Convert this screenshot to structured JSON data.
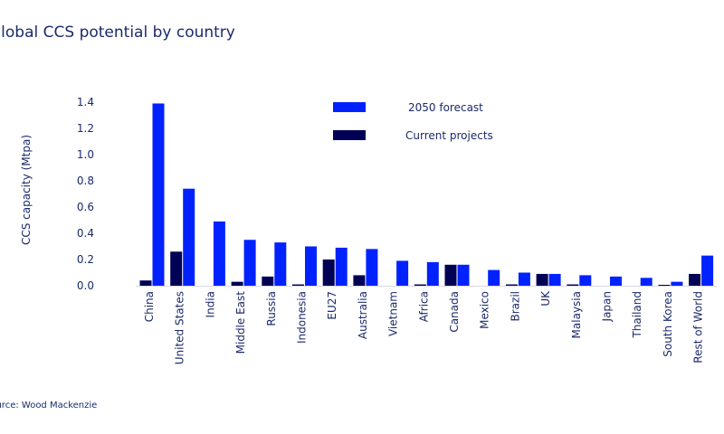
{
  "chart_data": {
    "type": "bar",
    "title": "Global CCS potential by country",
    "source": "Source: Wood Mackenzie",
    "ylabel": "CCS capacity (Mtpa)",
    "xlabel": "",
    "ylim": [
      0,
      1.4
    ],
    "yticks": [
      "0.0",
      "0.2",
      "0.4",
      "0.6",
      "0.8",
      "1.0",
      "1.2",
      "1.4"
    ],
    "grid": false,
    "legend_placement": "top-center",
    "categories": [
      "China",
      "United States",
      "India",
      "Middle East",
      "Russia",
      "Indonesia",
      "EU27",
      "Australia",
      "Vietnam",
      "Africa",
      "Canada",
      "Mexico",
      "Brazil",
      "UK",
      "Malaysia",
      "Japan",
      "Thailand",
      "South Korea",
      "Rest of World"
    ],
    "series": [
      {
        "name": "Current projects",
        "color": "#000055",
        "values": [
          0.04,
          0.26,
          0,
          0.03,
          0.07,
          0.01,
          0.2,
          0.08,
          0,
          0.01,
          0.16,
          0,
          0.01,
          0.09,
          0.01,
          0,
          0,
          0.005,
          0.09
        ]
      },
      {
        "name": "2050 forecast",
        "color": "#0022ff",
        "values": [
          1.39,
          0.74,
          0.49,
          0.35,
          0.33,
          0.3,
          0.29,
          0.28,
          0.19,
          0.18,
          0.16,
          0.12,
          0.1,
          0.09,
          0.08,
          0.07,
          0.06,
          0.03,
          0.23
        ]
      }
    ]
  }
}
